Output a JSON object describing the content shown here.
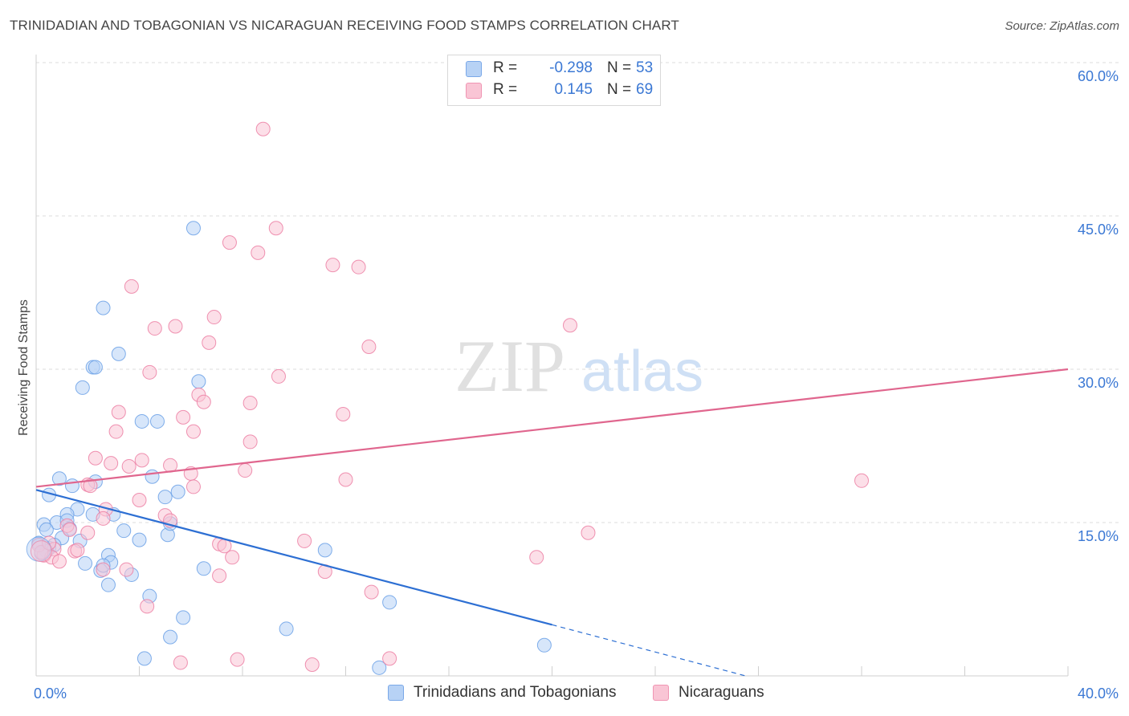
{
  "title": "TRINIDADIAN AND TOBAGONIAN VS NICARAGUAN RECEIVING FOOD STAMPS CORRELATION CHART",
  "source": "Source: ZipAtlas.com",
  "watermark": {
    "zip": "ZIP",
    "atlas": "atlas"
  },
  "legend": {
    "r_label": "R =",
    "n_label": "N =",
    "rows": [
      {
        "r": "-0.298",
        "n": "53",
        "fill": "#b7d2f5",
        "stroke": "#7aa8e8"
      },
      {
        "r": "0.145",
        "n": "69",
        "fill": "#f9c5d5",
        "stroke": "#f095b3"
      }
    ]
  },
  "bottom_legend": [
    {
      "label": "Trinidadians and Tobagonians",
      "fill": "#b7d2f5",
      "stroke": "#7aa8e8"
    },
    {
      "label": "Nicaraguans",
      "fill": "#f9c5d5",
      "stroke": "#f095b3"
    }
  ],
  "chart_data": {
    "type": "scatter",
    "title": "TRINIDADIAN AND TOBAGONIAN VS NICARAGUAN RECEIVING FOOD STAMPS CORRELATION CHART",
    "xlabel": "",
    "ylabel": "Receiving Food Stamps",
    "xlim": [
      0,
      40
    ],
    "ylim": [
      0,
      60
    ],
    "x_tick_labels": [
      {
        "value": 0,
        "label": "0.0%"
      },
      {
        "value": 40,
        "label": "40.0%"
      }
    ],
    "y_tick_labels": [
      {
        "value": 15,
        "label": "15.0%"
      },
      {
        "value": 30,
        "label": "30.0%"
      },
      {
        "value": 45,
        "label": "45.0%"
      },
      {
        "value": 60,
        "label": "60.0%"
      }
    ],
    "grid": true,
    "series": [
      {
        "name": "Trinidadians and Tobagonians",
        "color": "#6aa0e6",
        "fill": "#b7d2f5",
        "r": -0.298,
        "n": 53,
        "trend": {
          "x0": 0,
          "y0": 18.2,
          "x1": 20,
          "y1": 5.0,
          "dash_x_end": 27.5,
          "dash_y_end": 0,
          "color": "#2d6fd3"
        },
        "points": [
          [
            6.1,
            43.8
          ],
          [
            2.6,
            36.0
          ],
          [
            3.2,
            31.5
          ],
          [
            2.2,
            30.2
          ],
          [
            2.3,
            30.2
          ],
          [
            1.8,
            28.2
          ],
          [
            6.3,
            28.8
          ],
          [
            4.1,
            24.9
          ],
          [
            4.7,
            24.9
          ],
          [
            0.9,
            19.3
          ],
          [
            1.4,
            18.6
          ],
          [
            2.3,
            19.0
          ],
          [
            4.5,
            19.5
          ],
          [
            5.5,
            18.0
          ],
          [
            0.5,
            17.7
          ],
          [
            1.6,
            16.3
          ],
          [
            1.2,
            15.8
          ],
          [
            2.2,
            15.8
          ],
          [
            3.0,
            15.8
          ],
          [
            5.0,
            17.5
          ],
          [
            0.3,
            14.8
          ],
          [
            0.8,
            15.0
          ],
          [
            1.2,
            15.2
          ],
          [
            1.3,
            14.4
          ],
          [
            1.0,
            13.5
          ],
          [
            0.4,
            14.3
          ],
          [
            1.7,
            13.2
          ],
          [
            3.4,
            14.2
          ],
          [
            4.0,
            13.3
          ],
          [
            5.1,
            13.8
          ],
          [
            5.2,
            14.9
          ],
          [
            0.5,
            12.5
          ],
          [
            0.7,
            12.8
          ],
          [
            0.4,
            12.2
          ],
          [
            2.8,
            11.8
          ],
          [
            2.9,
            11.1
          ],
          [
            1.9,
            11.0
          ],
          [
            2.5,
            10.3
          ],
          [
            2.6,
            10.8
          ],
          [
            3.7,
            9.9
          ],
          [
            6.5,
            10.5
          ],
          [
            11.2,
            12.3
          ],
          [
            2.8,
            8.9
          ],
          [
            4.4,
            7.8
          ],
          [
            13.7,
            7.2
          ],
          [
            5.7,
            5.7
          ],
          [
            9.7,
            4.6
          ],
          [
            5.2,
            3.8
          ],
          [
            19.7,
            3.0
          ],
          [
            4.2,
            1.7
          ],
          [
            13.3,
            0.8
          ],
          [
            0.1,
            13.0
          ],
          [
            0.2,
            12.0
          ]
        ]
      },
      {
        "name": "Nicaraguans",
        "color": "#ec7fa3",
        "fill": "#f9c5d5",
        "r": 0.145,
        "n": 69,
        "trend": {
          "x0": 0,
          "y0": 18.5,
          "x1": 40,
          "y1": 30.0,
          "color": "#e0668e"
        },
        "points": [
          [
            8.8,
            53.5
          ],
          [
            9.3,
            43.8
          ],
          [
            7.5,
            42.4
          ],
          [
            8.6,
            41.4
          ],
          [
            11.5,
            40.2
          ],
          [
            12.5,
            40.0
          ],
          [
            3.7,
            38.1
          ],
          [
            6.9,
            35.1
          ],
          [
            20.7,
            34.3
          ],
          [
            4.6,
            34.0
          ],
          [
            5.4,
            34.2
          ],
          [
            6.7,
            32.6
          ],
          [
            12.9,
            32.2
          ],
          [
            4.4,
            29.7
          ],
          [
            9.4,
            29.3
          ],
          [
            6.3,
            27.5
          ],
          [
            6.5,
            26.8
          ],
          [
            8.3,
            26.7
          ],
          [
            3.2,
            25.8
          ],
          [
            5.7,
            25.3
          ],
          [
            11.9,
            25.6
          ],
          [
            3.1,
            23.9
          ],
          [
            6.1,
            23.9
          ],
          [
            8.3,
            22.9
          ],
          [
            2.3,
            21.3
          ],
          [
            4.1,
            21.1
          ],
          [
            2.9,
            20.8
          ],
          [
            3.6,
            20.5
          ],
          [
            5.2,
            20.6
          ],
          [
            8.1,
            20.1
          ],
          [
            6.0,
            19.8
          ],
          [
            12.0,
            19.2
          ],
          [
            32.0,
            19.1
          ],
          [
            2.0,
            18.7
          ],
          [
            2.1,
            18.6
          ],
          [
            6.1,
            18.5
          ],
          [
            2.7,
            16.3
          ],
          [
            4.0,
            17.2
          ],
          [
            5.0,
            15.7
          ],
          [
            2.6,
            15.4
          ],
          [
            5.2,
            15.2
          ],
          [
            1.2,
            14.7
          ],
          [
            2.0,
            14.0
          ],
          [
            1.3,
            14.3
          ],
          [
            7.1,
            12.9
          ],
          [
            10.4,
            13.2
          ],
          [
            7.3,
            12.7
          ],
          [
            21.4,
            14.0
          ],
          [
            0.7,
            12.4
          ],
          [
            1.5,
            12.2
          ],
          [
            0.3,
            11.8
          ],
          [
            0.6,
            11.6
          ],
          [
            0.9,
            11.2
          ],
          [
            1.6,
            12.3
          ],
          [
            7.6,
            11.6
          ],
          [
            19.4,
            11.6
          ],
          [
            2.6,
            10.4
          ],
          [
            3.5,
            10.4
          ],
          [
            11.2,
            10.2
          ],
          [
            7.1,
            9.8
          ],
          [
            13.0,
            8.2
          ],
          [
            4.3,
            6.8
          ],
          [
            13.7,
            1.7
          ],
          [
            7.8,
            1.6
          ],
          [
            5.6,
            1.3
          ],
          [
            10.7,
            1.1
          ],
          [
            0.1,
            12.8
          ],
          [
            0.2,
            12.1
          ],
          [
            0.5,
            13.0
          ]
        ]
      }
    ]
  }
}
